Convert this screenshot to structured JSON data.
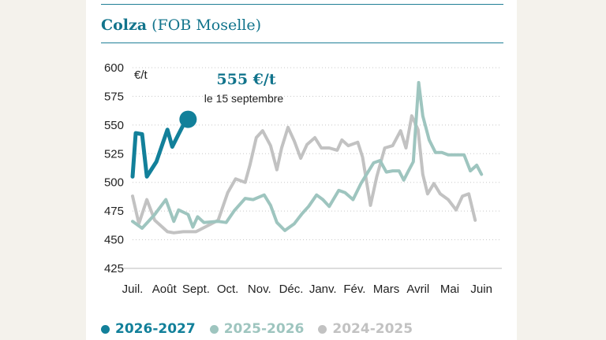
{
  "header": {
    "title_bold": "Colza",
    "title_rest": " (FOB Moselle)"
  },
  "chart_data": {
    "type": "line",
    "unit": "€/t",
    "ylim": [
      425,
      600
    ],
    "yticks": [
      425,
      450,
      475,
      500,
      525,
      550,
      575,
      600
    ],
    "categories": [
      "Juil.",
      "Août",
      "Sept.",
      "Oct.",
      "Nov.",
      "Déc.",
      "Janv.",
      "Fév.",
      "Mars",
      "Avril",
      "Mai",
      "Juin"
    ],
    "grid": true,
    "legend_position": "bottom",
    "annotation": {
      "value": "555 €/t",
      "date": "le 15 septembre"
    },
    "series": [
      {
        "name": "2026-2027",
        "color": "#12809a",
        "width": 5,
        "values": [
          [
            0.0,
            505
          ],
          [
            0.1,
            543
          ],
          [
            0.3,
            542
          ],
          [
            0.45,
            505
          ],
          [
            0.75,
            518
          ],
          [
            1.1,
            546
          ],
          [
            1.25,
            531
          ],
          [
            1.45,
            542
          ],
          [
            1.6,
            550
          ],
          [
            1.75,
            555
          ]
        ],
        "endpoint": true
      },
      {
        "name": "2025-2026",
        "color": "#9ec5bf",
        "width": 4,
        "values": [
          [
            0.0,
            466
          ],
          [
            0.3,
            460
          ],
          [
            0.7,
            472
          ],
          [
            1.05,
            485
          ],
          [
            1.3,
            466
          ],
          [
            1.45,
            476
          ],
          [
            1.75,
            472
          ],
          [
            1.9,
            461
          ],
          [
            2.05,
            470
          ],
          [
            2.25,
            465
          ],
          [
            2.7,
            466
          ],
          [
            2.95,
            465
          ],
          [
            3.2,
            475
          ],
          [
            3.55,
            486
          ],
          [
            3.8,
            485
          ],
          [
            4.15,
            489
          ],
          [
            4.35,
            480
          ],
          [
            4.55,
            465
          ],
          [
            4.8,
            458
          ],
          [
            5.1,
            464
          ],
          [
            5.35,
            473
          ],
          [
            5.55,
            479
          ],
          [
            5.8,
            489
          ],
          [
            6.0,
            485
          ],
          [
            6.2,
            479
          ],
          [
            6.5,
            493
          ],
          [
            6.7,
            491
          ],
          [
            6.95,
            485
          ],
          [
            7.2,
            499
          ],
          [
            7.6,
            517
          ],
          [
            7.8,
            519
          ],
          [
            8.0,
            509
          ],
          [
            8.2,
            510
          ],
          [
            8.4,
            510
          ],
          [
            8.55,
            502
          ],
          [
            8.7,
            510
          ],
          [
            8.85,
            518
          ],
          [
            9.02,
            587
          ],
          [
            9.15,
            558
          ],
          [
            9.35,
            537
          ],
          [
            9.55,
            526
          ],
          [
            9.75,
            526
          ],
          [
            9.95,
            524
          ],
          [
            10.2,
            524
          ],
          [
            10.45,
            524
          ],
          [
            10.65,
            510
          ],
          [
            10.85,
            515
          ],
          [
            11.0,
            507
          ]
        ]
      },
      {
        "name": "2024-2025",
        "color": "#c2c2c2",
        "width": 4,
        "values": [
          [
            0.0,
            488
          ],
          [
            0.2,
            464
          ],
          [
            0.45,
            485
          ],
          [
            0.7,
            467
          ],
          [
            1.1,
            457
          ],
          [
            1.3,
            456
          ],
          [
            1.6,
            457
          ],
          [
            2.0,
            457
          ],
          [
            2.35,
            462
          ],
          [
            2.7,
            467
          ],
          [
            3.0,
            491
          ],
          [
            3.25,
            503
          ],
          [
            3.55,
            500
          ],
          [
            3.7,
            515
          ],
          [
            3.9,
            539
          ],
          [
            4.1,
            545
          ],
          [
            4.35,
            532
          ],
          [
            4.55,
            511
          ],
          [
            4.7,
            530
          ],
          [
            4.9,
            548
          ],
          [
            5.1,
            536
          ],
          [
            5.3,
            521
          ],
          [
            5.5,
            533
          ],
          [
            5.75,
            539
          ],
          [
            5.95,
            530
          ],
          [
            6.2,
            530
          ],
          [
            6.45,
            528
          ],
          [
            6.6,
            537
          ],
          [
            6.8,
            532
          ],
          [
            7.1,
            535
          ],
          [
            7.25,
            522
          ],
          [
            7.5,
            480
          ],
          [
            7.7,
            505
          ],
          [
            7.95,
            530
          ],
          [
            8.2,
            532
          ],
          [
            8.45,
            545
          ],
          [
            8.62,
            530
          ],
          [
            8.8,
            558
          ],
          [
            9.0,
            546
          ],
          [
            9.15,
            507
          ],
          [
            9.3,
            490
          ],
          [
            9.5,
            499
          ],
          [
            9.7,
            490
          ],
          [
            9.95,
            485
          ],
          [
            10.2,
            476
          ],
          [
            10.4,
            488
          ],
          [
            10.6,
            490
          ],
          [
            10.8,
            467
          ]
        ]
      }
    ]
  }
}
